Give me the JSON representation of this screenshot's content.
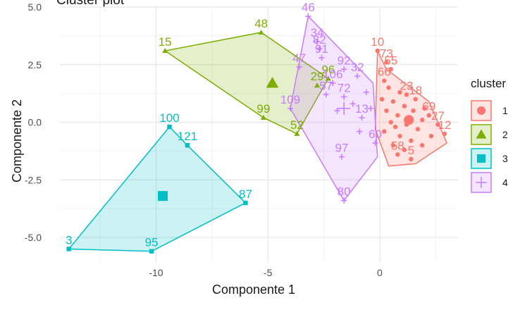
{
  "chart_data": {
    "type": "scatter",
    "title": "Cluster plot",
    "xlabel": "Componente 1",
    "ylabel": "Componente 2",
    "xlim": [
      -14.3,
      3.5
    ],
    "ylim": [
      -6.1,
      5.0
    ],
    "x_ticks": [
      -10,
      -5,
      0
    ],
    "x_tick_labels": [
      "-10",
      "-5",
      "0"
    ],
    "y_ticks": [
      5.0,
      2.5,
      0.0,
      -2.5,
      -5.0
    ],
    "y_tick_labels": [
      "5.0",
      "2.5",
      "0.0",
      "-2.5",
      "-5.0"
    ],
    "grid": true,
    "legend": {
      "title": "cluster",
      "position": "right",
      "entries": [
        "1",
        "2",
        "3",
        "4"
      ]
    },
    "series": [
      {
        "name": "1",
        "color": "#F8766D",
        "shape": "circle",
        "centroid": [
          1.3,
          0.1
        ],
        "hull": [
          [
            -0.1,
            3.1
          ],
          [
            0.3,
            2.3
          ],
          [
            2.2,
            0.9
          ],
          [
            3.0,
            -0.9
          ],
          [
            1.6,
            -1.8
          ],
          [
            0.4,
            -1.9
          ],
          [
            -0.2,
            -0.3
          ]
        ],
        "points": [
          {
            "label": "10",
            "x": -0.1,
            "y": 3.1
          },
          {
            "label": "73",
            "x": 0.3,
            "y": 2.6
          },
          {
            "label": "55",
            "x": 0.5,
            "y": 2.3
          },
          {
            "label": "66",
            "x": 0.2,
            "y": 1.8
          },
          {
            "label": "23",
            "x": 1.2,
            "y": 1.2
          },
          {
            "label": "18",
            "x": 1.6,
            "y": 1.0
          },
          {
            "label": "69",
            "x": 2.2,
            "y": 0.3
          },
          {
            "label": "27",
            "x": 2.6,
            "y": -0.1
          },
          {
            "label": "12",
            "x": 2.9,
            "y": -0.5
          },
          {
            "label": "58",
            "x": 0.8,
            "y": -1.4
          },
          {
            "label": "5",
            "x": 1.4,
            "y": -1.6
          },
          {
            "label": "",
            "x": 0.4,
            "y": 1.5
          },
          {
            "label": "",
            "x": 0.9,
            "y": 1.3
          },
          {
            "label": "",
            "x": 0.6,
            "y": 0.9
          },
          {
            "label": "",
            "x": 1.1,
            "y": 0.7
          },
          {
            "label": "",
            "x": 0.3,
            "y": 0.5
          },
          {
            "label": "",
            "x": 1.5,
            "y": 0.5
          },
          {
            "label": "",
            "x": 0.8,
            "y": 0.3
          },
          {
            "label": "",
            "x": 1.9,
            "y": 0.1
          },
          {
            "label": "",
            "x": 0.5,
            "y": 0.0
          },
          {
            "label": "",
            "x": 1.2,
            "y": -0.1
          },
          {
            "label": "",
            "x": 1.7,
            "y": -0.3
          },
          {
            "label": "",
            "x": 0.2,
            "y": -0.4
          },
          {
            "label": "",
            "x": 0.9,
            "y": -0.6
          },
          {
            "label": "",
            "x": 2.3,
            "y": -0.6
          },
          {
            "label": "",
            "x": 1.4,
            "y": -0.8
          },
          {
            "label": "",
            "x": 0.6,
            "y": -1.0
          },
          {
            "label": "",
            "x": 1.9,
            "y": -1.0
          },
          {
            "label": "",
            "x": 1.1,
            "y": -1.2
          },
          {
            "label": "",
            "x": 0.1,
            "y": 1.0
          },
          {
            "label": "",
            "x": 1.3,
            "y": 0.2
          },
          {
            "label": "",
            "x": 2.0,
            "y": 0.6
          },
          {
            "label": "",
            "x": 0.7,
            "y": -0.2
          }
        ]
      },
      {
        "name": "2",
        "color": "#7CAE00",
        "shape": "triangle",
        "centroid": [
          -4.8,
          1.7
        ],
        "hull": [
          [
            -9.6,
            3.1
          ],
          [
            -5.3,
            3.9
          ],
          [
            -2.3,
            1.9
          ],
          [
            -3.7,
            -0.5
          ],
          [
            -5.2,
            0.2
          ]
        ],
        "points": [
          {
            "label": "15",
            "x": -9.6,
            "y": 3.1
          },
          {
            "label": "48",
            "x": -5.3,
            "y": 3.9
          },
          {
            "label": "96",
            "x": -2.3,
            "y": 1.9
          },
          {
            "label": "29",
            "x": -2.8,
            "y": 1.6
          },
          {
            "label": "99",
            "x": -5.2,
            "y": 0.2
          },
          {
            "label": "52",
            "x": -3.7,
            "y": -0.5
          }
        ]
      },
      {
        "name": "3",
        "color": "#00BFC4",
        "shape": "square",
        "centroid": [
          -9.7,
          -3.2
        ],
        "hull": [
          [
            -9.4,
            -0.2
          ],
          [
            -8.6,
            -1.0
          ],
          [
            -6.0,
            -3.5
          ],
          [
            -10.2,
            -5.6
          ],
          [
            -13.9,
            -5.5
          ]
        ],
        "points": [
          {
            "label": "100",
            "x": -9.4,
            "y": -0.2
          },
          {
            "label": "121",
            "x": -8.6,
            "y": -1.0
          },
          {
            "label": "87",
            "x": -6.0,
            "y": -3.5
          },
          {
            "label": "95",
            "x": -10.2,
            "y": -5.6
          },
          {
            "label": "3",
            "x": -13.9,
            "y": -5.5
          }
        ]
      },
      {
        "name": "4",
        "color": "#C77CFF",
        "shape": "plus",
        "centroid": [
          -1.6,
          0.6
        ],
        "hull": [
          [
            -3.2,
            4.6
          ],
          [
            -0.3,
            1.7
          ],
          [
            -0.1,
            -1.5
          ],
          [
            -1.6,
            -3.4
          ],
          [
            -4.0,
            0.6
          ]
        ],
        "points": [
          {
            "label": "46",
            "x": -3.2,
            "y": 4.6
          },
          {
            "label": "34",
            "x": -2.8,
            "y": 3.5
          },
          {
            "label": "82",
            "x": -2.7,
            "y": 3.2
          },
          {
            "label": "91",
            "x": -2.6,
            "y": 2.8
          },
          {
            "label": "47",
            "x": -3.6,
            "y": 2.4
          },
          {
            "label": "92",
            "x": -1.6,
            "y": 2.3
          },
          {
            "label": "32",
            "x": -1.0,
            "y": 2.0
          },
          {
            "label": "106",
            "x": -2.1,
            "y": 1.7
          },
          {
            "label": "57",
            "x": -2.4,
            "y": 1.2
          },
          {
            "label": "72",
            "x": -1.6,
            "y": 1.1
          },
          {
            "label": "109",
            "x": -4.0,
            "y": 0.6
          },
          {
            "label": "13",
            "x": -0.8,
            "y": 0.2
          },
          {
            "label": "97",
            "x": -1.7,
            "y": -1.5
          },
          {
            "label": "60",
            "x": -0.2,
            "y": -0.9
          },
          {
            "label": "80",
            "x": -1.6,
            "y": -3.4
          },
          {
            "label": "",
            "x": -1.2,
            "y": 0.8
          },
          {
            "label": "",
            "x": -0.6,
            "y": 1.3
          },
          {
            "label": "",
            "x": -1.9,
            "y": 0.5
          },
          {
            "label": "",
            "x": -0.9,
            "y": -0.4
          },
          {
            "label": "",
            "x": -0.4,
            "y": 0.6
          }
        ]
      }
    ]
  }
}
